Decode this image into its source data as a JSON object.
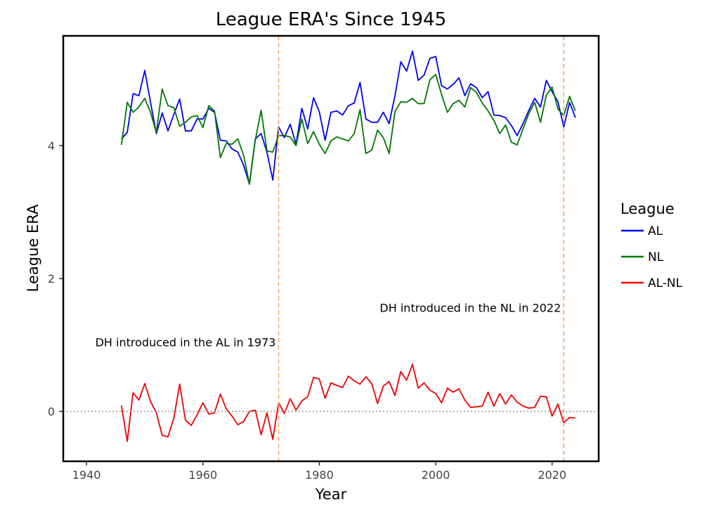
{
  "chart_data": {
    "type": "line",
    "title": "League ERA's Since 1945",
    "xlabel": "Year",
    "ylabel": "League ERA",
    "xlim": [
      1936,
      2028
    ],
    "ylim": [
      -0.75,
      5.65
    ],
    "xticks": [
      1940,
      1960,
      1980,
      2000,
      2020
    ],
    "yticks": [
      0,
      2,
      4
    ],
    "grid": false,
    "reference_lines": [
      {
        "orientation": "horizontal",
        "y": 0,
        "style": "dotted",
        "color": "#888888"
      },
      {
        "orientation": "vertical",
        "x": 1973,
        "style": "dashed",
        "color": "#f4a460"
      },
      {
        "orientation": "vertical",
        "x": 2022,
        "style": "dashed",
        "color": "#f4a460"
      }
    ],
    "annotations": [
      {
        "text": "DH introduced in the AL in 1973",
        "x": 1973,
        "y": 0.98
      },
      {
        "text": "DH introduced in the NL in 2022",
        "x": 2022,
        "y": 1.5
      }
    ],
    "legend": {
      "title": "League",
      "position": "right"
    },
    "series": [
      {
        "name": "AL",
        "color": "#0000ee",
        "x": [
          1946,
          1947,
          1948,
          1949,
          1950,
          1951,
          1952,
          1953,
          1954,
          1955,
          1956,
          1957,
          1958,
          1959,
          1960,
          1961,
          1962,
          1963,
          1964,
          1965,
          1966,
          1967,
          1968,
          1969,
          1970,
          1971,
          1972,
          1973,
          1974,
          1975,
          1976,
          1977,
          1978,
          1979,
          1980,
          1981,
          1982,
          1983,
          1984,
          1985,
          1986,
          1987,
          1988,
          1989,
          1990,
          1991,
          1992,
          1993,
          1994,
          1995,
          1996,
          1997,
          1998,
          1999,
          2000,
          2001,
          2002,
          2003,
          2004,
          2005,
          2006,
          2007,
          2008,
          2009,
          2010,
          2011,
          2012,
          2013,
          2014,
          2015,
          2016,
          2017,
          2018,
          2019,
          2020,
          2021,
          2022,
          2023,
          2024
        ],
        "y": [
          4.1,
          4.2,
          4.78,
          4.75,
          5.13,
          4.65,
          4.18,
          4.49,
          4.22,
          4.47,
          4.7,
          4.22,
          4.22,
          4.4,
          4.4,
          4.56,
          4.5,
          4.08,
          4.07,
          3.95,
          3.9,
          3.7,
          3.42,
          4.1,
          4.18,
          3.9,
          3.48,
          4.28,
          4.12,
          4.32,
          4.02,
          4.56,
          4.25,
          4.72,
          4.51,
          4.08,
          4.5,
          4.52,
          4.46,
          4.6,
          4.64,
          4.95,
          4.4,
          4.35,
          4.35,
          4.5,
          4.33,
          4.75,
          5.26,
          5.12,
          5.42,
          4.98,
          5.06,
          5.31,
          5.34,
          4.9,
          4.85,
          4.92,
          5.02,
          4.75,
          4.93,
          4.87,
          4.72,
          4.81,
          4.46,
          4.45,
          4.42,
          4.3,
          4.15,
          4.33,
          4.53,
          4.71,
          4.58,
          4.98,
          4.81,
          4.66,
          4.28,
          4.65,
          4.42
        ]
      },
      {
        "name": "NL",
        "color": "#007700",
        "x": [
          1946,
          1947,
          1948,
          1949,
          1950,
          1951,
          1952,
          1953,
          1954,
          1955,
          1956,
          1957,
          1958,
          1959,
          1960,
          1961,
          1962,
          1963,
          1964,
          1965,
          1966,
          1967,
          1968,
          1969,
          1970,
          1971,
          1972,
          1973,
          1974,
          1975,
          1976,
          1977,
          1978,
          1979,
          1980,
          1981,
          1982,
          1983,
          1984,
          1985,
          1986,
          1987,
          1988,
          1989,
          1990,
          1991,
          1992,
          1993,
          1994,
          1995,
          1996,
          1997,
          1998,
          1999,
          2000,
          2001,
          2002,
          2003,
          2004,
          2005,
          2006,
          2007,
          2008,
          2009,
          2010,
          2011,
          2012,
          2013,
          2014,
          2015,
          2016,
          2017,
          2018,
          2019,
          2020,
          2021,
          2022,
          2023,
          2024
        ],
        "y": [
          4.01,
          4.65,
          4.5,
          4.58,
          4.71,
          4.5,
          4.2,
          4.85,
          4.6,
          4.57,
          4.29,
          4.35,
          4.43,
          4.45,
          4.27,
          4.6,
          4.52,
          3.82,
          4.03,
          4.02,
          4.1,
          3.85,
          3.42,
          4.08,
          4.53,
          3.92,
          3.9,
          4.15,
          4.15,
          4.13,
          4.0,
          4.4,
          4.03,
          4.21,
          4.02,
          3.88,
          4.07,
          4.13,
          4.1,
          4.07,
          4.18,
          4.54,
          3.88,
          3.93,
          4.23,
          4.12,
          3.88,
          4.51,
          4.66,
          4.65,
          4.71,
          4.63,
          4.63,
          4.99,
          5.07,
          4.77,
          4.5,
          4.63,
          4.68,
          4.58,
          4.87,
          4.8,
          4.64,
          4.52,
          4.38,
          4.18,
          4.31,
          4.05,
          4.01,
          4.25,
          4.48,
          4.65,
          4.35,
          4.76,
          4.88,
          4.55,
          4.45,
          4.74,
          4.52
        ]
      },
      {
        "name": "AL-NL",
        "color": "#ee0000",
        "x": [
          1946,
          1947,
          1948,
          1949,
          1950,
          1951,
          1952,
          1953,
          1954,
          1955,
          1956,
          1957,
          1958,
          1959,
          1960,
          1961,
          1962,
          1963,
          1964,
          1965,
          1966,
          1967,
          1968,
          1969,
          1970,
          1971,
          1972,
          1973,
          1974,
          1975,
          1976,
          1977,
          1978,
          1979,
          1980,
          1981,
          1982,
          1983,
          1984,
          1985,
          1986,
          1987,
          1988,
          1989,
          1990,
          1991,
          1992,
          1993,
          1994,
          1995,
          1996,
          1997,
          1998,
          1999,
          2000,
          2001,
          2002,
          2003,
          2004,
          2005,
          2006,
          2007,
          2008,
          2009,
          2010,
          2011,
          2012,
          2013,
          2014,
          2015,
          2016,
          2017,
          2018,
          2019,
          2020,
          2021,
          2022,
          2023,
          2024
        ],
        "y": [
          0.09,
          -0.45,
          0.28,
          0.17,
          0.42,
          0.15,
          -0.02,
          -0.36,
          -0.38,
          -0.1,
          0.41,
          -0.13,
          -0.21,
          -0.05,
          0.13,
          -0.04,
          -0.02,
          0.26,
          0.04,
          -0.07,
          -0.2,
          -0.15,
          0.0,
          0.02,
          -0.35,
          -0.02,
          -0.42,
          0.13,
          -0.03,
          0.19,
          0.02,
          0.16,
          0.22,
          0.51,
          0.49,
          0.2,
          0.43,
          0.39,
          0.36,
          0.53,
          0.46,
          0.41,
          0.52,
          0.42,
          0.12,
          0.38,
          0.45,
          0.24,
          0.6,
          0.47,
          0.71,
          0.35,
          0.43,
          0.32,
          0.27,
          0.13,
          0.35,
          0.29,
          0.34,
          0.17,
          0.06,
          0.07,
          0.08,
          0.29,
          0.08,
          0.27,
          0.11,
          0.25,
          0.14,
          0.08,
          0.05,
          0.06,
          0.23,
          0.22,
          -0.07,
          0.11,
          -0.17,
          -0.09,
          -0.1
        ]
      }
    ]
  }
}
